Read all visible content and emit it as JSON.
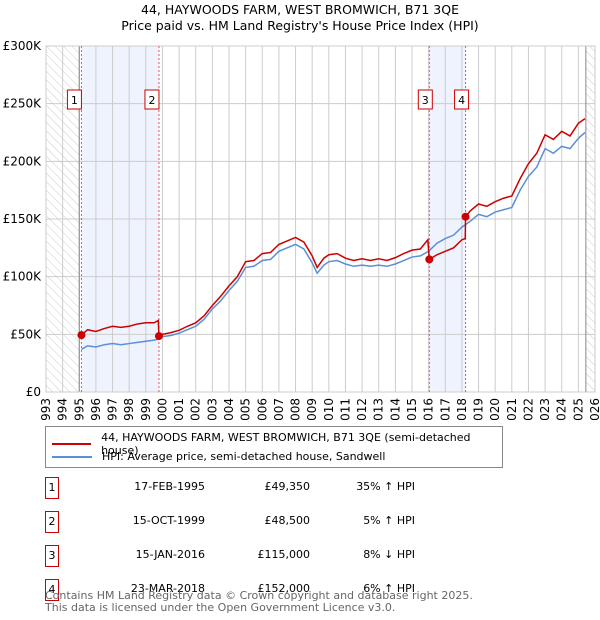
{
  "title": "44, HAYWOODS FARM, WEST BROMWICH, B71 3QE",
  "subtitle": "Price paid vs. HM Land Registry's House Price Index (HPI)",
  "chart_data": {
    "type": "line",
    "xlim": [
      1993,
      2026
    ],
    "ylim": [
      0,
      300000
    ],
    "yticks": [
      {
        "v": 0,
        "label": "£0"
      },
      {
        "v": 50000,
        "label": "£50K"
      },
      {
        "v": 100000,
        "label": "£100K"
      },
      {
        "v": 150000,
        "label": "£150K"
      },
      {
        "v": 200000,
        "label": "£200K"
      },
      {
        "v": 250000,
        "label": "£250K"
      },
      {
        "v": 300000,
        "label": "£300K"
      }
    ],
    "xticks": [
      "1993",
      "1994",
      "1995",
      "1996",
      "1997",
      "1998",
      "1999",
      "2000",
      "2001",
      "2002",
      "2003",
      "2004",
      "2005",
      "2006",
      "2007",
      "2008",
      "2009",
      "2010",
      "2011",
      "2012",
      "2013",
      "2014",
      "2015",
      "2016",
      "2017",
      "2018",
      "2019",
      "2020",
      "2021",
      "2022",
      "2023",
      "2024",
      "2025",
      "2026"
    ],
    "hatched_ranges": [
      [
        1993,
        1995.0
      ],
      [
        2025.45,
        2026
      ]
    ],
    "shaded_ranges": [
      [
        1995.13,
        1999.79
      ],
      [
        2016.04,
        2018.22
      ]
    ],
    "series": [
      {
        "name": "44, HAYWOODS FARM, WEST BROMWICH, B71 3QE (semi-detached house)",
        "color": "#cc0000",
        "x": [
          1995.13,
          1995.5,
          1996,
          1996.5,
          1997,
          1997.5,
          1998,
          1998.5,
          1999,
          1999.5,
          1999.75,
          1999.79,
          2000,
          2000.5,
          2001,
          2001.5,
          2002,
          2002.5,
          2003,
          2003.5,
          2004,
          2004.5,
          2005,
          2005.5,
          2006,
          2006.5,
          2007,
          2007.5,
          2008,
          2008.5,
          2009,
          2009.3,
          2009.7,
          2010,
          2010.5,
          2011,
          2011.5,
          2012,
          2012.5,
          2013,
          2013.5,
          2014,
          2014.5,
          2015,
          2015.5,
          2015.95,
          2016.04,
          2016.5,
          2017,
          2017.5,
          2018,
          2018.2,
          2018.22,
          2018.5,
          2019,
          2019.5,
          2020,
          2020.5,
          2021,
          2021.5,
          2022,
          2022.5,
          2023,
          2023.5,
          2024,
          2024.5,
          2025,
          2025.4
        ],
        "y": [
          49350,
          54000,
          52500,
          55000,
          57000,
          56000,
          57000,
          59000,
          60000,
          60000,
          62000,
          48500,
          50000,
          51500,
          53500,
          57000,
          60000,
          66000,
          75000,
          83000,
          92000,
          100000,
          113000,
          114000,
          120000,
          121000,
          128000,
          131000,
          134000,
          130000,
          118000,
          108000,
          116000,
          119000,
          120000,
          116000,
          114000,
          115500,
          114000,
          115500,
          114000,
          116500,
          120000,
          123000,
          124000,
          132000,
          115000,
          119000,
          122000,
          125000,
          132000,
          133000,
          152000,
          157000,
          163000,
          161000,
          165000,
          168000,
          170000,
          185000,
          198000,
          207000,
          223000,
          219000,
          226000,
          222000,
          233000,
          237000
        ]
      },
      {
        "name": "HPI: Average price, semi-detached house, Sandwell",
        "color": "#5b8fd6",
        "x": [
          1995.13,
          1995.5,
          1996,
          1996.5,
          1997,
          1997.5,
          1998,
          1998.5,
          1999,
          1999.5,
          1999.8,
          2000,
          2000.5,
          2001,
          2001.5,
          2002,
          2002.5,
          2003,
          2003.5,
          2004,
          2004.5,
          2005,
          2005.5,
          2006,
          2006.5,
          2007,
          2007.5,
          2008,
          2008.5,
          2009,
          2009.3,
          2009.7,
          2010,
          2010.5,
          2011,
          2011.5,
          2012,
          2012.5,
          2013,
          2013.5,
          2014,
          2014.5,
          2015,
          2015.5,
          2016,
          2016.5,
          2017,
          2017.5,
          2018,
          2018.5,
          2019,
          2019.5,
          2020,
          2020.5,
          2021,
          2021.5,
          2022,
          2022.5,
          2023,
          2023.5,
          2024,
          2024.5,
          2025,
          2025.4
        ],
        "y": [
          37000,
          40000,
          39000,
          41000,
          42000,
          41000,
          42000,
          43000,
          44000,
          45000,
          46000,
          48000,
          49000,
          51000,
          54000,
          57000,
          63000,
          72000,
          79000,
          88000,
          96000,
          108000,
          109000,
          114000,
          115000,
          122000,
          125000,
          128000,
          124000,
          112000,
          103000,
          110000,
          113000,
          114000,
          111000,
          109000,
          110000,
          109000,
          110000,
          109000,
          111000,
          114000,
          117000,
          118000,
          122000,
          129000,
          133000,
          136000,
          143000,
          148000,
          154000,
          152000,
          156000,
          158000,
          160000,
          175000,
          187000,
          195000,
          211000,
          207000,
          213000,
          211000,
          220000,
          225000
        ]
      }
    ],
    "sales": [
      {
        "id": "1",
        "x": 1995.13,
        "price": 49350
      },
      {
        "id": "2",
        "x": 1999.79,
        "price": 48500
      },
      {
        "id": "3",
        "x": 2016.04,
        "price": 115000
      },
      {
        "id": "4",
        "x": 2018.22,
        "price": 152000
      }
    ]
  },
  "transactions": [
    {
      "id": "1",
      "date": "17-FEB-1995",
      "price": "£49,350",
      "diff": "35% ↑ HPI"
    },
    {
      "id": "2",
      "date": "15-OCT-1999",
      "price": "£48,500",
      "diff": "5% ↑ HPI"
    },
    {
      "id": "3",
      "date": "15-JAN-2016",
      "price": "£115,000",
      "diff": "8% ↓ HPI"
    },
    {
      "id": "4",
      "date": "23-MAR-2018",
      "price": "£152,000",
      "diff": "6% ↑ HPI"
    }
  ],
  "footer": [
    "Contains HM Land Registry data © Crown copyright and database right 2025.",
    "This data is licensed under the Open Government Licence v3.0."
  ]
}
